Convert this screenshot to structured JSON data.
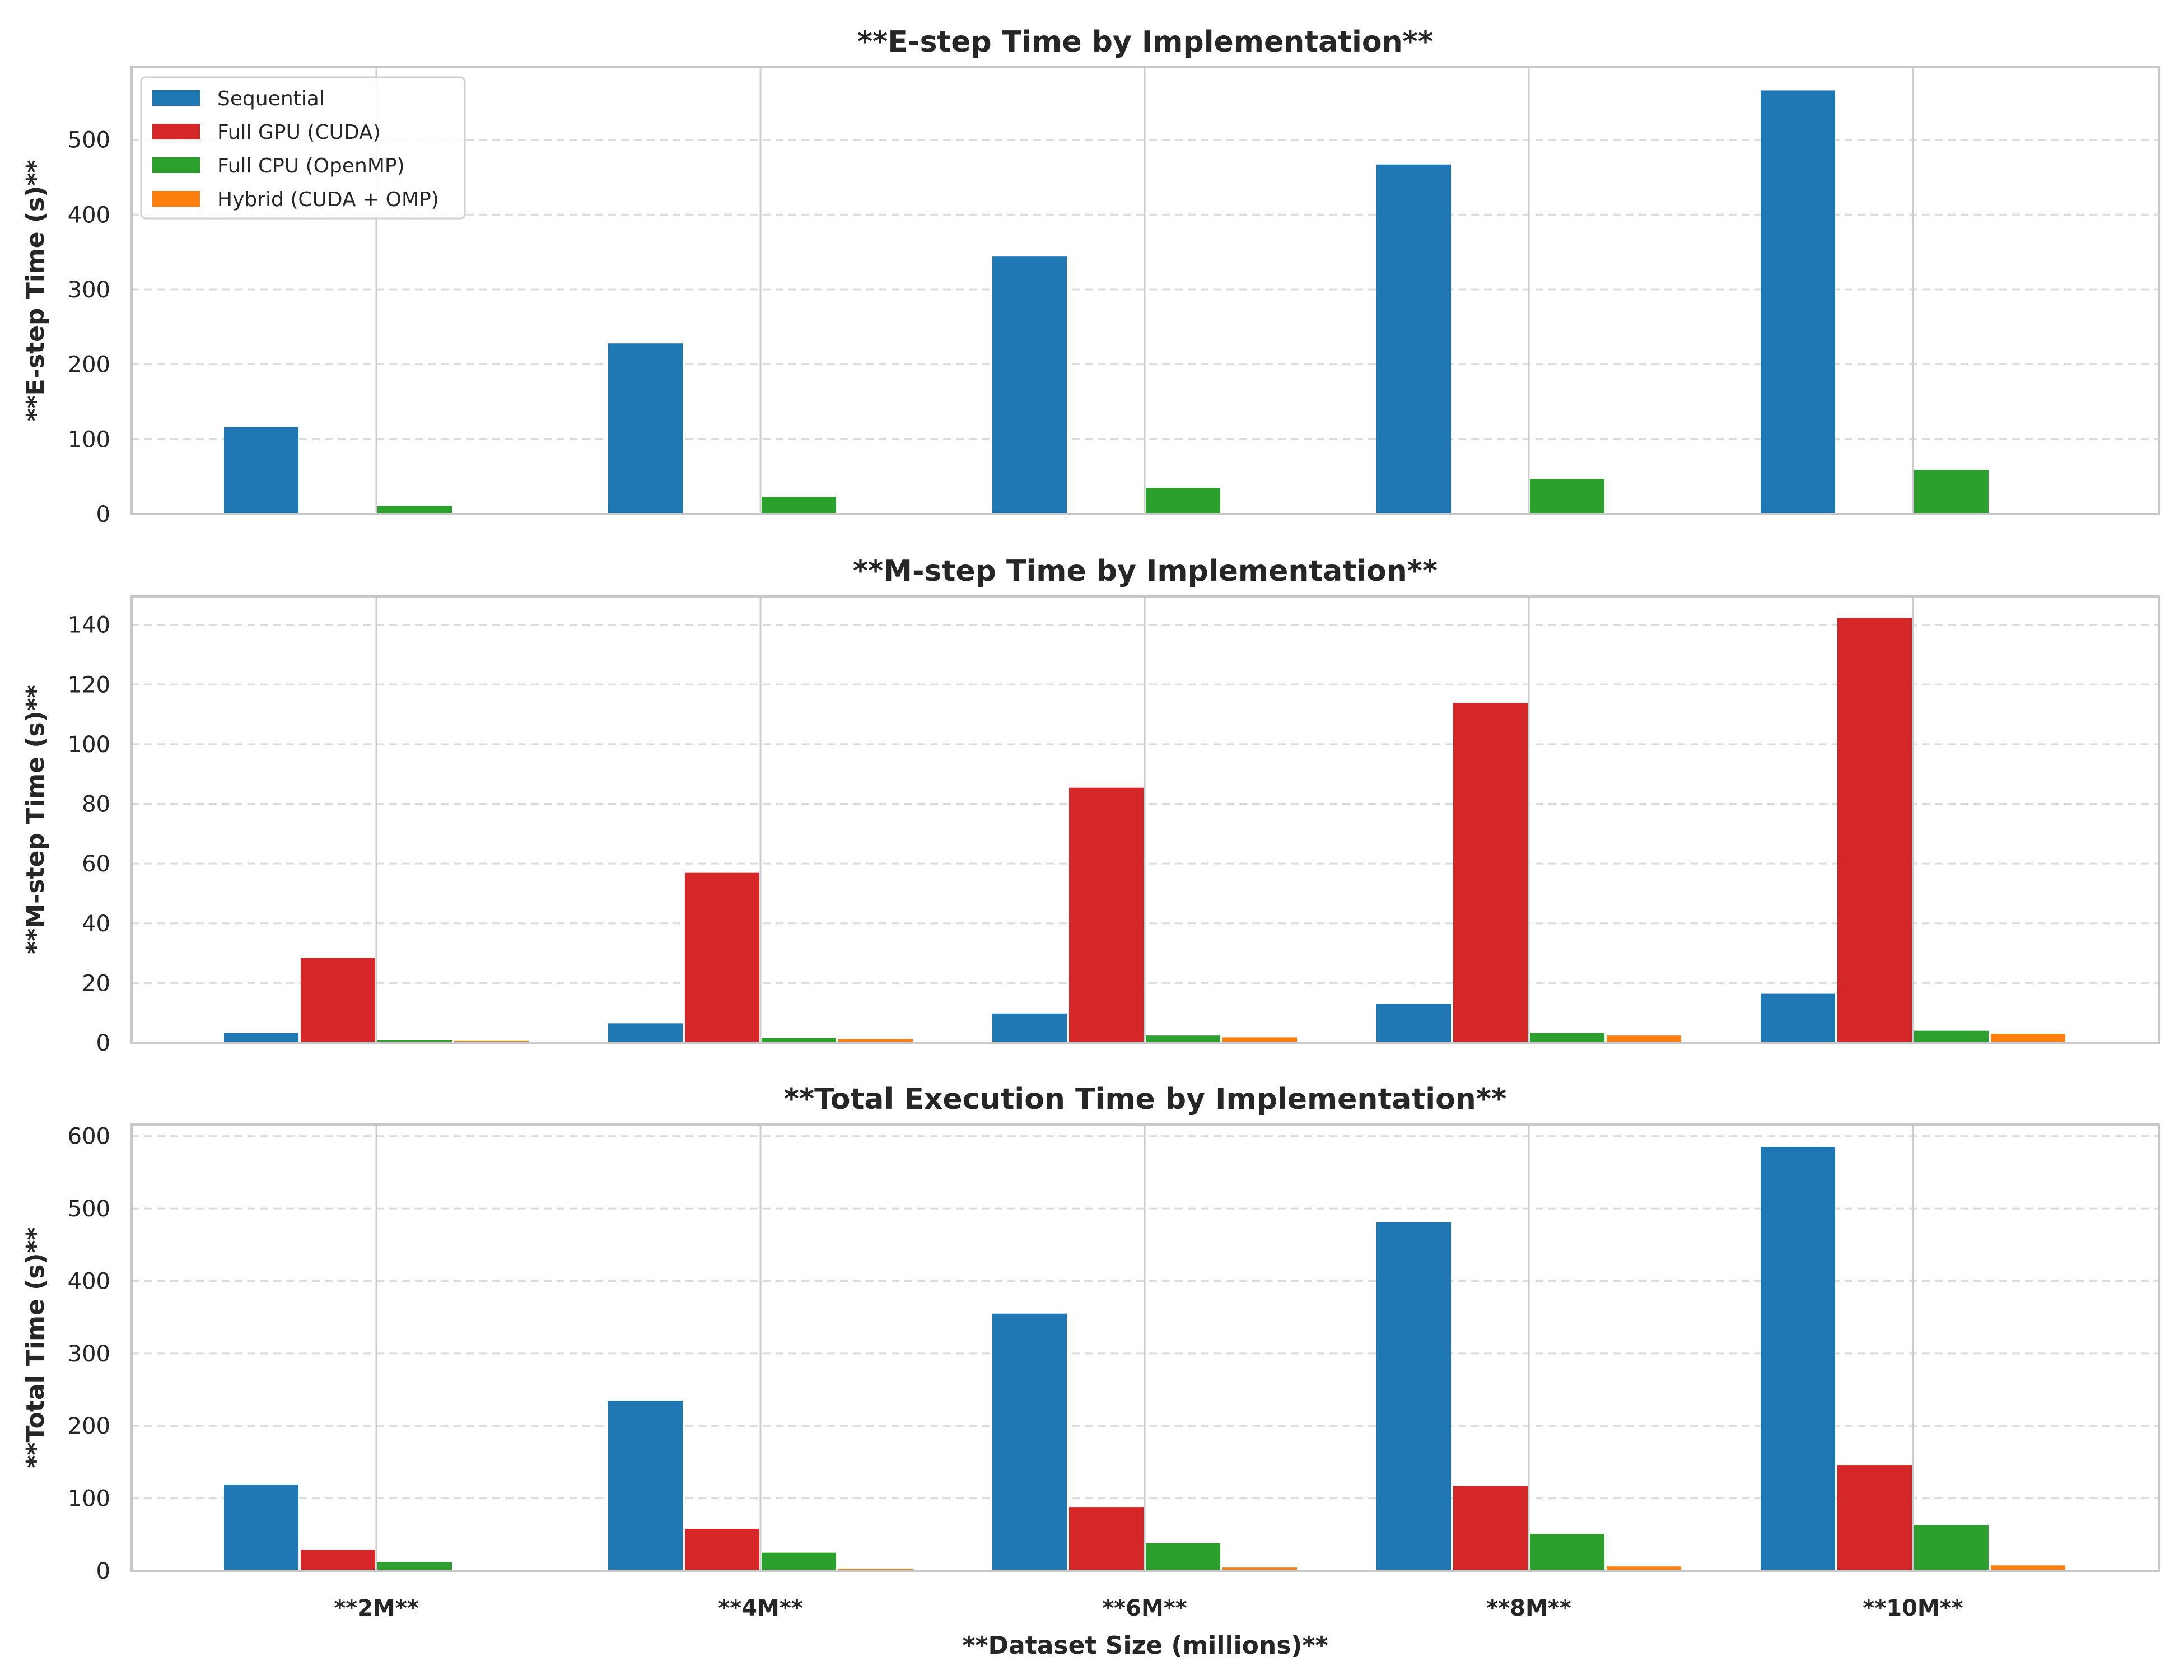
{
  "chart_data": [
    {
      "type": "bar",
      "title": "**E-step Time by Implementation**",
      "ylabel": "**E-step Time (s)**",
      "xlabel": "",
      "categories": [
        "**2M**",
        "**4M**",
        "**6M**",
        "**8M**",
        "**10M**"
      ],
      "ylim": [
        0,
        597
      ],
      "yticks": [
        0,
        100,
        200,
        300,
        400,
        500
      ],
      "grid": "y-dashed",
      "legend": "top-left",
      "series": [
        {
          "name": "Sequential",
          "color": "#1f77b4",
          "values": [
            116,
            228,
            344,
            467,
            566
          ]
        },
        {
          "name": "Full GPU (CUDA)",
          "color": "#d62728",
          "values": [
            0.3,
            0.5,
            0.7,
            1.0,
            1.2
          ]
        },
        {
          "name": "Full CPU (OpenMP)",
          "color": "#2ca02c",
          "values": [
            11,
            23,
            35,
            47,
            59
          ]
        },
        {
          "name": "Hybrid (CUDA + OMP)",
          "color": "#ff7f0e",
          "values": [
            0.3,
            0.5,
            0.7,
            1.0,
            1.2
          ]
        }
      ]
    },
    {
      "type": "bar",
      "title": "**M-step Time by Implementation**",
      "ylabel": "**M-step Time (s)**",
      "xlabel": "",
      "categories": [
        "**2M**",
        "**4M**",
        "**6M**",
        "**8M**",
        "**10M**"
      ],
      "ylim": [
        0,
        149.5
      ],
      "yticks": [
        0,
        20,
        40,
        60,
        80,
        100,
        120,
        140
      ],
      "grid": "y-dashed",
      "legend": "",
      "series": [
        {
          "name": "Sequential",
          "color": "#1f77b4",
          "values": [
            3.3,
            6.5,
            9.8,
            13.1,
            16.4
          ]
        },
        {
          "name": "Full GPU (CUDA)",
          "color": "#d62728",
          "values": [
            28.4,
            56.9,
            85.4,
            113.8,
            142.3
          ]
        },
        {
          "name": "Full CPU (OpenMP)",
          "color": "#2ca02c",
          "values": [
            0.8,
            1.6,
            2.4,
            3.2,
            4.0
          ]
        },
        {
          "name": "Hybrid (CUDA + OMP)",
          "color": "#ff7f0e",
          "values": [
            0.6,
            1.2,
            1.8,
            2.4,
            3.0
          ]
        }
      ]
    },
    {
      "type": "bar",
      "title": "**Total Execution Time by Implementation**",
      "ylabel": "**Total Time (s)**",
      "xlabel": "**Dataset Size (millions)**",
      "categories": [
        "**2M**",
        "**4M**",
        "**6M**",
        "**8M**",
        "**10M**"
      ],
      "ylim": [
        0,
        616
      ],
      "yticks": [
        0,
        100,
        200,
        300,
        400,
        500,
        600
      ],
      "grid": "y-dashed",
      "legend": "",
      "series": [
        {
          "name": "Sequential",
          "color": "#1f77b4",
          "values": [
            119,
            235,
            355,
            481,
            585
          ]
        },
        {
          "name": "Full GPU (CUDA)",
          "color": "#d62728",
          "values": [
            29,
            58,
            88,
            117,
            146
          ]
        },
        {
          "name": "Full CPU (OpenMP)",
          "color": "#2ca02c",
          "values": [
            12,
            25,
            38,
            51,
            63
          ]
        },
        {
          "name": "Hybrid (CUDA + OMP)",
          "color": "#ff7f0e",
          "values": [
            1.5,
            3,
            4.5,
            6,
            7.5
          ]
        }
      ]
    }
  ]
}
